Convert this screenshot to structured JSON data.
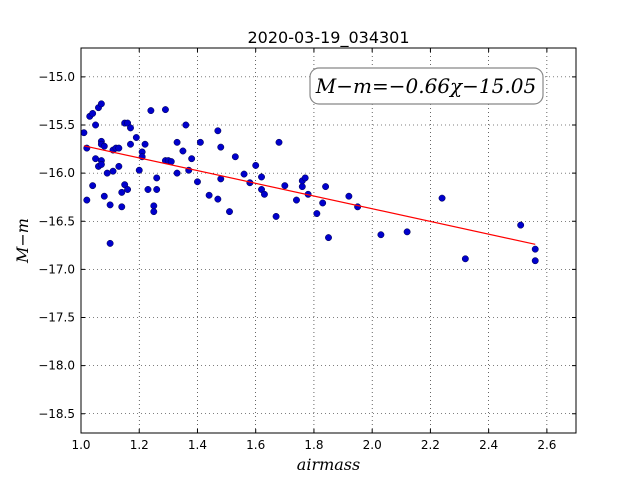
{
  "chart_data": {
    "type": "scatter",
    "title": "2020-03-19_034301",
    "xlabel": "airmass",
    "ylabel": "M−m",
    "xlim": [
      1.0,
      2.7
    ],
    "ylim": [
      -18.7,
      -14.7
    ],
    "x_ticks": [
      1.0,
      1.2,
      1.4,
      1.6,
      1.8,
      2.0,
      2.2,
      2.4,
      2.6
    ],
    "x_tick_labels": [
      "1.0",
      "1.2",
      "1.4",
      "1.6",
      "1.8",
      "2.0",
      "2.2",
      "2.4",
      "2.6"
    ],
    "y_ticks": [
      -15.0,
      -15.5,
      -16.0,
      -16.5,
      -17.0,
      -17.5,
      -18.0,
      -18.5
    ],
    "y_tick_labels": [
      "−15.0",
      "−15.5",
      "−16.0",
      "−16.5",
      "−17.0",
      "−17.5",
      "−18.0",
      "−18.5"
    ],
    "grid": true,
    "annotation": "M−m=−0.66χ−15.05",
    "point_color": "#0000cc",
    "fit_color": "#ff0000",
    "fit_line": {
      "slope": -0.66,
      "intercept": -15.05,
      "x_range": [
        1.01,
        2.56
      ]
    },
    "points": [
      [
        1.01,
        -15.58
      ],
      [
        1.02,
        -15.74
      ],
      [
        1.02,
        -16.28
      ],
      [
        1.03,
        -15.41
      ],
      [
        1.04,
        -16.13
      ],
      [
        1.04,
        -15.38
      ],
      [
        1.05,
        -15.5
      ],
      [
        1.05,
        -15.85
      ],
      [
        1.06,
        -15.93
      ],
      [
        1.06,
        -15.32
      ],
      [
        1.07,
        -15.28
      ],
      [
        1.07,
        -15.67
      ],
      [
        1.07,
        -15.7
      ],
      [
        1.07,
        -15.87
      ],
      [
        1.07,
        -15.91
      ],
      [
        1.08,
        -15.72
      ],
      [
        1.08,
        -16.24
      ],
      [
        1.09,
        -16.0
      ],
      [
        1.1,
        -16.73
      ],
      [
        1.1,
        -16.33
      ],
      [
        1.11,
        -15.98
      ],
      [
        1.11,
        -15.76
      ],
      [
        1.12,
        -15.74
      ],
      [
        1.13,
        -15.74
      ],
      [
        1.13,
        -15.93
      ],
      [
        1.14,
        -16.35
      ],
      [
        1.14,
        -16.2
      ],
      [
        1.15,
        -15.48
      ],
      [
        1.15,
        -16.12
      ],
      [
        1.16,
        -15.48
      ],
      [
        1.16,
        -16.17
      ],
      [
        1.17,
        -15.53
      ],
      [
        1.17,
        -15.7
      ],
      [
        1.19,
        -15.63
      ],
      [
        1.2,
        -15.97
      ],
      [
        1.21,
        -15.78
      ],
      [
        1.21,
        -15.83
      ],
      [
        1.22,
        -15.7
      ],
      [
        1.23,
        -16.17
      ],
      [
        1.24,
        -15.35
      ],
      [
        1.25,
        -16.34
      ],
      [
        1.25,
        -16.4
      ],
      [
        1.26,
        -16.17
      ],
      [
        1.26,
        -16.05
      ],
      [
        1.29,
        -15.34
      ],
      [
        1.29,
        -15.87
      ],
      [
        1.3,
        -15.87
      ],
      [
        1.31,
        -15.88
      ],
      [
        1.33,
        -15.68
      ],
      [
        1.33,
        -16.0
      ],
      [
        1.35,
        -15.77
      ],
      [
        1.36,
        -15.5
      ],
      [
        1.37,
        -15.97
      ],
      [
        1.38,
        -15.85
      ],
      [
        1.4,
        -16.09
      ],
      [
        1.41,
        -15.68
      ],
      [
        1.44,
        -16.23
      ],
      [
        1.47,
        -16.27
      ],
      [
        1.47,
        -15.56
      ],
      [
        1.48,
        -15.73
      ],
      [
        1.48,
        -16.06
      ],
      [
        1.51,
        -16.4
      ],
      [
        1.53,
        -15.83
      ],
      [
        1.56,
        -16.01
      ],
      [
        1.58,
        -16.1
      ],
      [
        1.6,
        -15.92
      ],
      [
        1.62,
        -16.04
      ],
      [
        1.62,
        -16.17
      ],
      [
        1.63,
        -16.22
      ],
      [
        1.67,
        -16.45
      ],
      [
        1.68,
        -15.68
      ],
      [
        1.7,
        -16.13
      ],
      [
        1.74,
        -16.28
      ],
      [
        1.76,
        -16.14
      ],
      [
        1.76,
        -16.08
      ],
      [
        1.77,
        -16.05
      ],
      [
        1.78,
        -16.22
      ],
      [
        1.81,
        -16.42
      ],
      [
        1.83,
        -16.31
      ],
      [
        1.84,
        -16.14
      ],
      [
        1.85,
        -16.67
      ],
      [
        1.92,
        -16.24
      ],
      [
        1.95,
        -16.35
      ],
      [
        2.03,
        -16.64
      ],
      [
        2.12,
        -16.61
      ],
      [
        2.24,
        -16.26
      ],
      [
        2.32,
        -16.89
      ],
      [
        2.51,
        -16.54
      ],
      [
        2.56,
        -16.79
      ],
      [
        2.56,
        -16.91
      ]
    ]
  }
}
